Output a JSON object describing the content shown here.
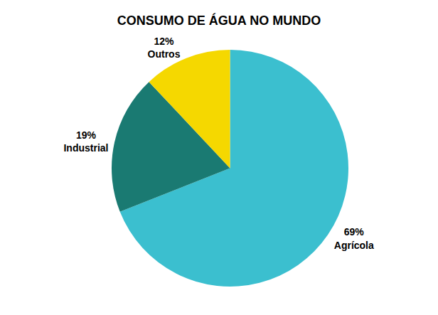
{
  "chart_data": {
    "type": "pie",
    "title": "CONSUMO DE ÁGUA NO MUNDO",
    "categories": [
      "Agrícola",
      "Industrial",
      "Outros"
    ],
    "values": [
      69,
      19,
      12
    ],
    "value_labels": [
      "69%",
      "19%",
      "12%"
    ],
    "colors": [
      "#3bbfcf",
      "#1a7a72",
      "#f5d800"
    ],
    "data_labels": true
  }
}
